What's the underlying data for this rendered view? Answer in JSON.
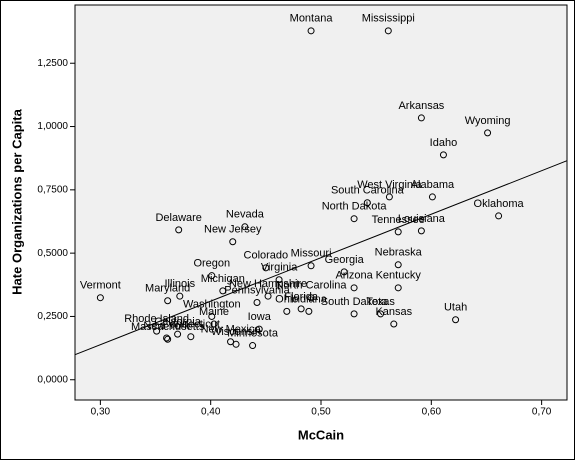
{
  "chart_data": {
    "type": "scatter",
    "x_label": "McCain",
    "y_label": "Hate Organizations per Capita",
    "xlim": [
      0.277,
      0.723
    ],
    "ylim": [
      -0.08,
      1.48
    ],
    "xticks": [
      {
        "value": 0.3,
        "label": "0,30"
      },
      {
        "value": 0.4,
        "label": "0,40"
      },
      {
        "value": 0.5,
        "label": "0,50"
      },
      {
        "value": 0.6,
        "label": "0,60"
      },
      {
        "value": 0.7,
        "label": "0,70"
      }
    ],
    "yticks": [
      {
        "value": 0,
        "label": "0,0000"
      },
      {
        "value": 0.25,
        "label": "0,2500"
      },
      {
        "value": 0.5,
        "label": "0,5000"
      },
      {
        "value": 0.75,
        "label": "0,7500"
      },
      {
        "value": 1.0,
        "label": "1,0000"
      },
      {
        "value": 1.25,
        "label": "1,2500"
      }
    ],
    "color": "#000000",
    "background": "#f0f0f0",
    "point_labels": [
      "Montana",
      "Mississippi",
      "Arkansas",
      "Wyoming",
      "Idaho",
      "West Virginia",
      "Alabama",
      "South Carolina",
      "North Dakota",
      "Oklahoma",
      "Delaware",
      "Nevada",
      "New Jersey",
      "Louisiana",
      "Tennessee",
      "Missouri",
      "Colorado",
      "Nebraska",
      "Georgia",
      "Virginia",
      "Oregon",
      "Michigan",
      "Arizona",
      "Kentucky",
      "Vermont",
      "Maryland",
      "Illinois",
      "Pennsylvania",
      "New Hampshire",
      "North Carolina",
      "Indiana",
      "Texas",
      "Ohio",
      "Washington",
      "Florida",
      "South Dakota",
      "Kansas",
      "Utah",
      "California",
      "Maine",
      "Rhode Island",
      "New York",
      "Massachusetts",
      "Connecticut",
      "New Mexico",
      "Iowa",
      "Minnesota",
      "Wisconsin"
    ],
    "x": [
      0.491,
      0.561,
      0.591,
      0.651,
      0.611,
      0.562,
      0.601,
      0.542,
      0.53,
      0.661,
      0.371,
      0.431,
      0.42,
      0.591,
      0.57,
      0.491,
      0.45,
      0.57,
      0.521,
      0.462,
      0.401,
      0.411,
      0.53,
      0.57,
      0.3,
      0.361,
      0.372,
      0.442,
      0.452,
      0.491,
      0.489,
      0.554,
      0.469,
      0.401,
      0.482,
      0.53,
      0.566,
      0.622,
      0.37,
      0.403,
      0.351,
      0.36,
      0.361,
      0.382,
      0.418,
      0.444,
      0.438,
      0.423
    ],
    "values": [
      1.378,
      1.378,
      1.034,
      0.975,
      0.888,
      0.722,
      0.722,
      0.699,
      0.636,
      0.647,
      0.592,
      0.604,
      0.545,
      0.588,
      0.584,
      0.45,
      0.442,
      0.454,
      0.426,
      0.395,
      0.411,
      0.351,
      0.363,
      0.363,
      0.324,
      0.312,
      0.33,
      0.305,
      0.33,
      0.324,
      0.27,
      0.26,
      0.27,
      0.25,
      0.28,
      0.26,
      0.22,
      0.237,
      0.18,
      0.22,
      0.192,
      0.165,
      0.16,
      0.17,
      0.15,
      0.2,
      0.135,
      0.14
    ],
    "fit_line": {
      "x": [
        0.277,
        0.723
      ],
      "y": [
        0.099,
        0.865
      ]
    }
  }
}
